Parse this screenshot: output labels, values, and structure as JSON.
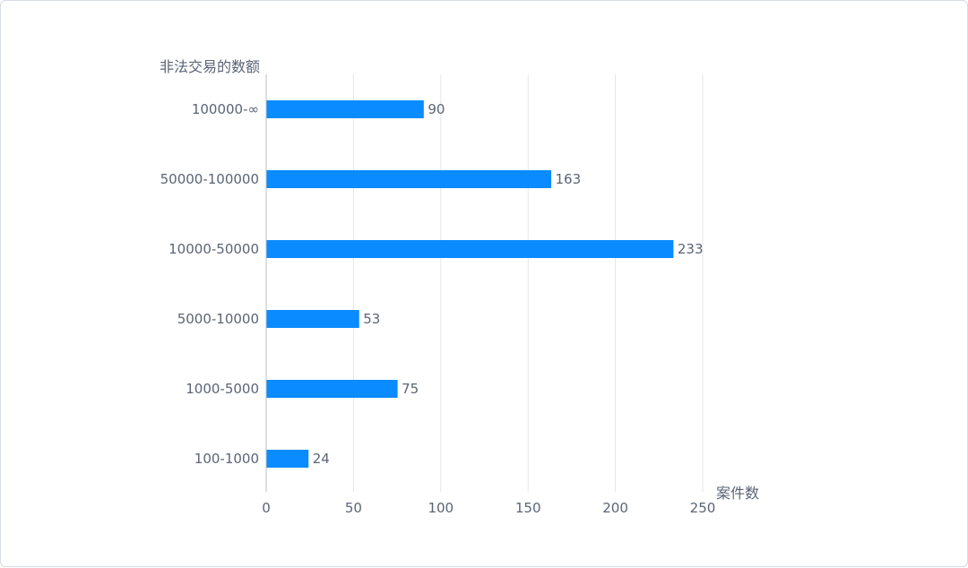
{
  "chart_data": {
    "type": "bar",
    "orientation": "horizontal",
    "ylabel": "非法交易的数额",
    "xlabel": "案件数",
    "categories": [
      "100000-∞",
      "50000-100000",
      "10000-50000",
      "5000-10000",
      "1000-5000",
      "100-1000"
    ],
    "values": [
      90,
      163,
      233,
      53,
      75,
      24
    ],
    "xlim": [
      0,
      250
    ],
    "xticks": [
      0,
      50,
      100,
      150,
      200,
      250
    ],
    "grid": true,
    "bar_color": "#0a8bff"
  }
}
